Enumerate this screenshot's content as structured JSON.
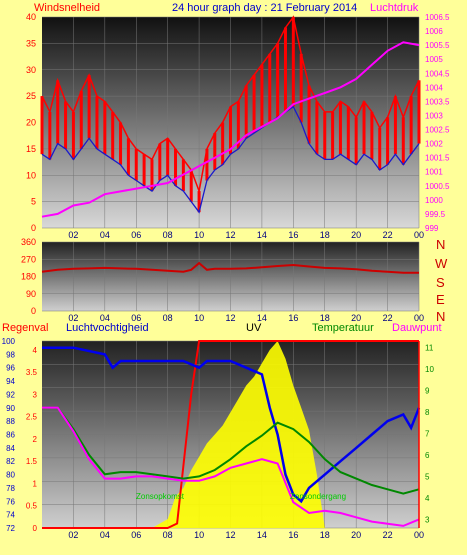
{
  "header": {
    "title": "24 hour graph day : 21 February 2014",
    "left_label": "Windsnelheid",
    "right_label": "Luchtdruk"
  },
  "bottom_header": {
    "regenval": "Regenval",
    "luchtvochtigheid": "Luchtvochtigheid",
    "uv": "UV",
    "temperatuur": "Temperatuur",
    "dauwpunt": "Dauwpunt"
  },
  "annotations": {
    "sunrise": "Zonsopkomst",
    "sunset": "Zonsondergang"
  },
  "compass": [
    "N",
    "W",
    "S",
    "E",
    "N"
  ],
  "colors": {
    "background": "#ffff99",
    "title": "#0000cc",
    "wind_gust": "#ff0000",
    "wind_speed": "#1a1acc",
    "pressure": "#ff00ff",
    "direction": "#cc0000",
    "humidity": "#0000ee",
    "uv": "#ffff00",
    "temperature": "#008800",
    "dewpoint": "#ff00ff",
    "rain": "#ff0000",
    "axis_left_bottom": "#0000cc",
    "axis_right_bottom": "#008800"
  },
  "chart_data": [
    {
      "type": "line",
      "name": "wind-pressure",
      "x_ticks": [
        "02",
        "04",
        "06",
        "08",
        "10",
        "12",
        "14",
        "16",
        "18",
        "20",
        "22",
        "00"
      ],
      "y_left_ticks": [
        "0",
        "5",
        "10",
        "15",
        "20",
        "25",
        "30",
        "35",
        "40"
      ],
      "y_left_range": [
        0,
        40
      ],
      "y_right_ticks": [
        "999",
        "999.5",
        "1000",
        "1000.5",
        "1001",
        "1001.5",
        "1002",
        "1002.5",
        "1003",
        "1003.5",
        "1004",
        "1004.5",
        "1005",
        "1005.5",
        "1006",
        "1006.5"
      ],
      "y_right_range": [
        999,
        1006.5
      ],
      "x_range": [
        0,
        24
      ],
      "series": [
        {
          "name": "Windsnelheid",
          "axis": "left",
          "x": [
            0,
            0.5,
            1,
            1.5,
            2,
            2.5,
            3,
            3.5,
            4,
            4.5,
            5,
            5.5,
            6,
            6.5,
            7,
            7.5,
            8,
            8.5,
            9,
            9.5,
            10,
            10.5,
            11,
            11.5,
            12,
            12.5,
            13,
            13.5,
            14,
            14.5,
            15,
            15.5,
            16,
            16.5,
            17,
            17.5,
            18,
            18.5,
            19,
            19.5,
            20,
            20.5,
            21,
            21.5,
            22,
            22.5,
            23,
            23.5,
            24
          ],
          "y": [
            14,
            13,
            16,
            15,
            13,
            15,
            17,
            15,
            14,
            13,
            12,
            10,
            9,
            8,
            7,
            9,
            10,
            8,
            7,
            5,
            3,
            9,
            11,
            12,
            14,
            15,
            17,
            18,
            19,
            20,
            21,
            22,
            23,
            20,
            16,
            14,
            13,
            13,
            14,
            13,
            12,
            14,
            13,
            11,
            12,
            14,
            12,
            14,
            16
          ]
        },
        {
          "name": "Windstoot",
          "axis": "left",
          "x": [
            0,
            0.5,
            1,
            1.5,
            2,
            2.5,
            3,
            3.5,
            4,
            4.5,
            5,
            5.5,
            6,
            6.5,
            7,
            7.5,
            8,
            8.5,
            9,
            9.5,
            10,
            10.5,
            11,
            11.5,
            12,
            12.5,
            13,
            13.5,
            14,
            14.5,
            15,
            15.5,
            16,
            16.5,
            17,
            17.5,
            18,
            18.5,
            19,
            19.5,
            20,
            20.5,
            21,
            21.5,
            22,
            22.5,
            23,
            23.5,
            24
          ],
          "y": [
            25,
            22,
            28,
            24,
            22,
            26,
            29,
            25,
            24,
            22,
            20,
            17,
            15,
            14,
            13,
            16,
            17,
            15,
            13,
            11,
            7,
            15,
            18,
            20,
            23,
            24,
            27,
            29,
            31,
            33,
            35,
            38,
            40,
            33,
            27,
            24,
            22,
            22,
            24,
            23,
            21,
            24,
            22,
            19,
            21,
            25,
            21,
            25,
            28
          ]
        },
        {
          "name": "Luchtdruk",
          "axis": "right",
          "x": [
            0,
            1,
            2,
            3,
            4,
            5,
            6,
            7,
            8,
            9,
            10,
            11,
            12,
            13,
            14,
            15,
            16,
            17,
            18,
            19,
            20,
            21,
            22,
            23,
            24
          ],
          "y": [
            999.4,
            999.5,
            999.8,
            999.9,
            1000.2,
            1000.3,
            1000.4,
            1000.5,
            1000.6,
            1000.9,
            1001.2,
            1001.5,
            1001.8,
            1002.3,
            1002.6,
            1002.9,
            1003.4,
            1003.6,
            1003.8,
            1004.0,
            1004.3,
            1004.8,
            1005.3,
            1005.6,
            1005.5
          ]
        }
      ]
    },
    {
      "type": "line",
      "name": "wind-direction",
      "x_ticks": [
        "02",
        "04",
        "06",
        "08",
        "10",
        "12",
        "14",
        "16",
        "18",
        "20",
        "22",
        "00"
      ],
      "y_ticks": [
        "0",
        "90",
        "180",
        "270",
        "360"
      ],
      "y_range": [
        0,
        360
      ],
      "x_range": [
        0,
        24
      ],
      "series": [
        {
          "name": "Windrichting",
          "x": [
            0,
            1,
            2,
            3,
            4,
            5,
            6,
            7,
            8,
            9,
            9.5,
            10,
            10.5,
            11,
            12,
            13,
            14,
            15,
            16,
            17,
            18,
            19,
            20,
            21,
            22,
            23,
            24
          ],
          "y": [
            205,
            215,
            220,
            222,
            225,
            222,
            220,
            215,
            210,
            205,
            215,
            250,
            215,
            220,
            220,
            222,
            228,
            235,
            240,
            232,
            225,
            222,
            218,
            210,
            205,
            200,
            200
          ]
        }
      ]
    },
    {
      "type": "line",
      "name": "humidity-uv-temperature",
      "x_ticks": [
        "02",
        "04",
        "06",
        "08",
        "10",
        "12",
        "14",
        "16",
        "18",
        "20",
        "22",
        "00"
      ],
      "y_left1_ticks": [
        "0",
        "0.5",
        "1",
        "1.5",
        "2",
        "2.5",
        "3",
        "3.5",
        "4"
      ],
      "y_left1_range": [
        0,
        4.2
      ],
      "y_left2_ticks": [
        "72",
        "74",
        "76",
        "78",
        "80",
        "82",
        "84",
        "86",
        "88",
        "90",
        "92",
        "94",
        "96",
        "98",
        "100"
      ],
      "y_left2_range": [
        72,
        100
      ],
      "y_right_ticks": [
        "3",
        "4",
        "5",
        "6",
        "7",
        "8",
        "9",
        "10",
        "11"
      ],
      "y_right_range": [
        2.6,
        11.3
      ],
      "x_range": [
        0,
        24
      ],
      "series": [
        {
          "name": "Luchtvochtigheid",
          "axis": "left2",
          "x": [
            0,
            2,
            4,
            4.5,
            5,
            6,
            7,
            8,
            9,
            10,
            10.5,
            11,
            12,
            13,
            14,
            14.5,
            15,
            15.5,
            16,
            16.5,
            17,
            18,
            19,
            20,
            21,
            22,
            23,
            23.5,
            24
          ],
          "y": [
            99,
            99,
            98,
            96,
            97,
            97,
            97,
            97,
            97,
            96,
            97,
            97,
            97,
            96,
            95,
            90,
            86,
            80,
            77,
            76,
            78,
            80,
            82,
            84,
            86,
            88,
            89,
            87,
            90
          ]
        },
        {
          "name": "Temperatuur",
          "axis": "right",
          "x": [
            0,
            1,
            2,
            3,
            4,
            5,
            6,
            7,
            8,
            9,
            10,
            11,
            12,
            13,
            14,
            15,
            16,
            17,
            18,
            19,
            20,
            21,
            22,
            23,
            24
          ],
          "y": [
            8.2,
            8.2,
            7.2,
            6.0,
            5.1,
            5.2,
            5.2,
            5.1,
            5.0,
            4.9,
            5.0,
            5.3,
            5.8,
            6.4,
            6.9,
            7.5,
            7.2,
            6.6,
            5.8,
            5.2,
            4.9,
            4.6,
            4.4,
            4.2,
            4.4
          ]
        },
        {
          "name": "Dauwpunt",
          "axis": "right",
          "x": [
            0,
            1,
            2,
            3,
            4,
            5,
            6,
            7,
            8,
            9,
            10,
            11,
            12,
            13,
            14,
            15,
            16,
            17,
            18,
            19,
            20,
            21,
            22,
            23,
            24
          ],
          "y": [
            8.2,
            8.2,
            7.1,
            5.8,
            4.9,
            4.9,
            5.0,
            5.0,
            4.9,
            4.8,
            4.8,
            5.0,
            5.4,
            5.6,
            5.8,
            5.6,
            3.8,
            3.3,
            3.4,
            3.3,
            3.1,
            2.9,
            2.8,
            2.7,
            3.0
          ]
        },
        {
          "name": "UV",
          "axis": "left1",
          "x": [
            0,
            7,
            8,
            8.5,
            9,
            9.5,
            10,
            10.5,
            11,
            11.5,
            12,
            12.5,
            13,
            13.5,
            14,
            14.5,
            15,
            15.5,
            16,
            16.5,
            17,
            17.5,
            18,
            24
          ],
          "y": [
            0,
            0,
            0.2,
            0.7,
            0.9,
            1.3,
            1.6,
            1.9,
            2.1,
            2.3,
            2.6,
            2.9,
            3.2,
            3.4,
            3.7,
            4.0,
            4.2,
            3.8,
            3.2,
            2.7,
            2.2,
            1.2,
            0,
            0
          ]
        },
        {
          "name": "Regenval",
          "axis": "left1",
          "x": [
            0,
            8,
            8.6,
            9,
            9.5,
            10,
            24
          ],
          "y": [
            0,
            0,
            0.1,
            1.4,
            3.0,
            4.2,
            4.2
          ]
        }
      ]
    }
  ]
}
